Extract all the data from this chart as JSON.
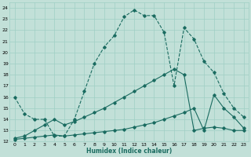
{
  "xlabel": "Humidex (Indice chaleur)",
  "xlim": [
    -0.5,
    23.5
  ],
  "ylim": [
    12,
    24.5
  ],
  "xticks": [
    0,
    1,
    2,
    3,
    4,
    5,
    6,
    7,
    8,
    9,
    10,
    11,
    12,
    13,
    14,
    15,
    16,
    17,
    18,
    19,
    20,
    21,
    22,
    23
  ],
  "yticks": [
    12,
    13,
    14,
    15,
    16,
    17,
    18,
    19,
    20,
    21,
    22,
    23,
    24
  ],
  "bg_color": "#c2e0d8",
  "grid_color": "#9fcfc5",
  "line_color": "#1a6b60",
  "line1_x": [
    0,
    1,
    2,
    3,
    4,
    5,
    6,
    7,
    8,
    9,
    10,
    11,
    12,
    13,
    14,
    15,
    16,
    17,
    18,
    19,
    20,
    21,
    22,
    23
  ],
  "line1_y": [
    16,
    14.5,
    14,
    14,
    12.5,
    12.5,
    14,
    16.5,
    19,
    20.5,
    21.5,
    23.2,
    23.8,
    23.3,
    23.3,
    21.8,
    17.0,
    22.2,
    21.2,
    19.2,
    18.2,
    16.3,
    15.0,
    14.2
  ],
  "line2_x": [
    0,
    1,
    2,
    3,
    4,
    5,
    6,
    7,
    8,
    9,
    10,
    11,
    12,
    13,
    14,
    15,
    16,
    17,
    18,
    19,
    20,
    21,
    22,
    23
  ],
  "line2_y": [
    12.2,
    12.3,
    12.4,
    12.5,
    12.6,
    12.5,
    12.6,
    12.7,
    12.8,
    12.9,
    13.0,
    13.1,
    13.3,
    13.5,
    13.7,
    14.0,
    14.3,
    14.6,
    15.0,
    13.0,
    16.2,
    15.0,
    14.2,
    13.2
  ],
  "line3_x": [
    0,
    1,
    2,
    3,
    4,
    5,
    6,
    7,
    8,
    9,
    10,
    11,
    12,
    13,
    14,
    15,
    16,
    17,
    18,
    19,
    20,
    21,
    22,
    23
  ],
  "line3_y": [
    12.3,
    12.5,
    13.0,
    13.5,
    14.0,
    13.5,
    13.8,
    14.2,
    14.6,
    15.0,
    15.5,
    16.0,
    16.5,
    17.0,
    17.5,
    18.0,
    18.5,
    18.0,
    13.0,
    13.2,
    13.3,
    13.2,
    13.0,
    13.0
  ]
}
